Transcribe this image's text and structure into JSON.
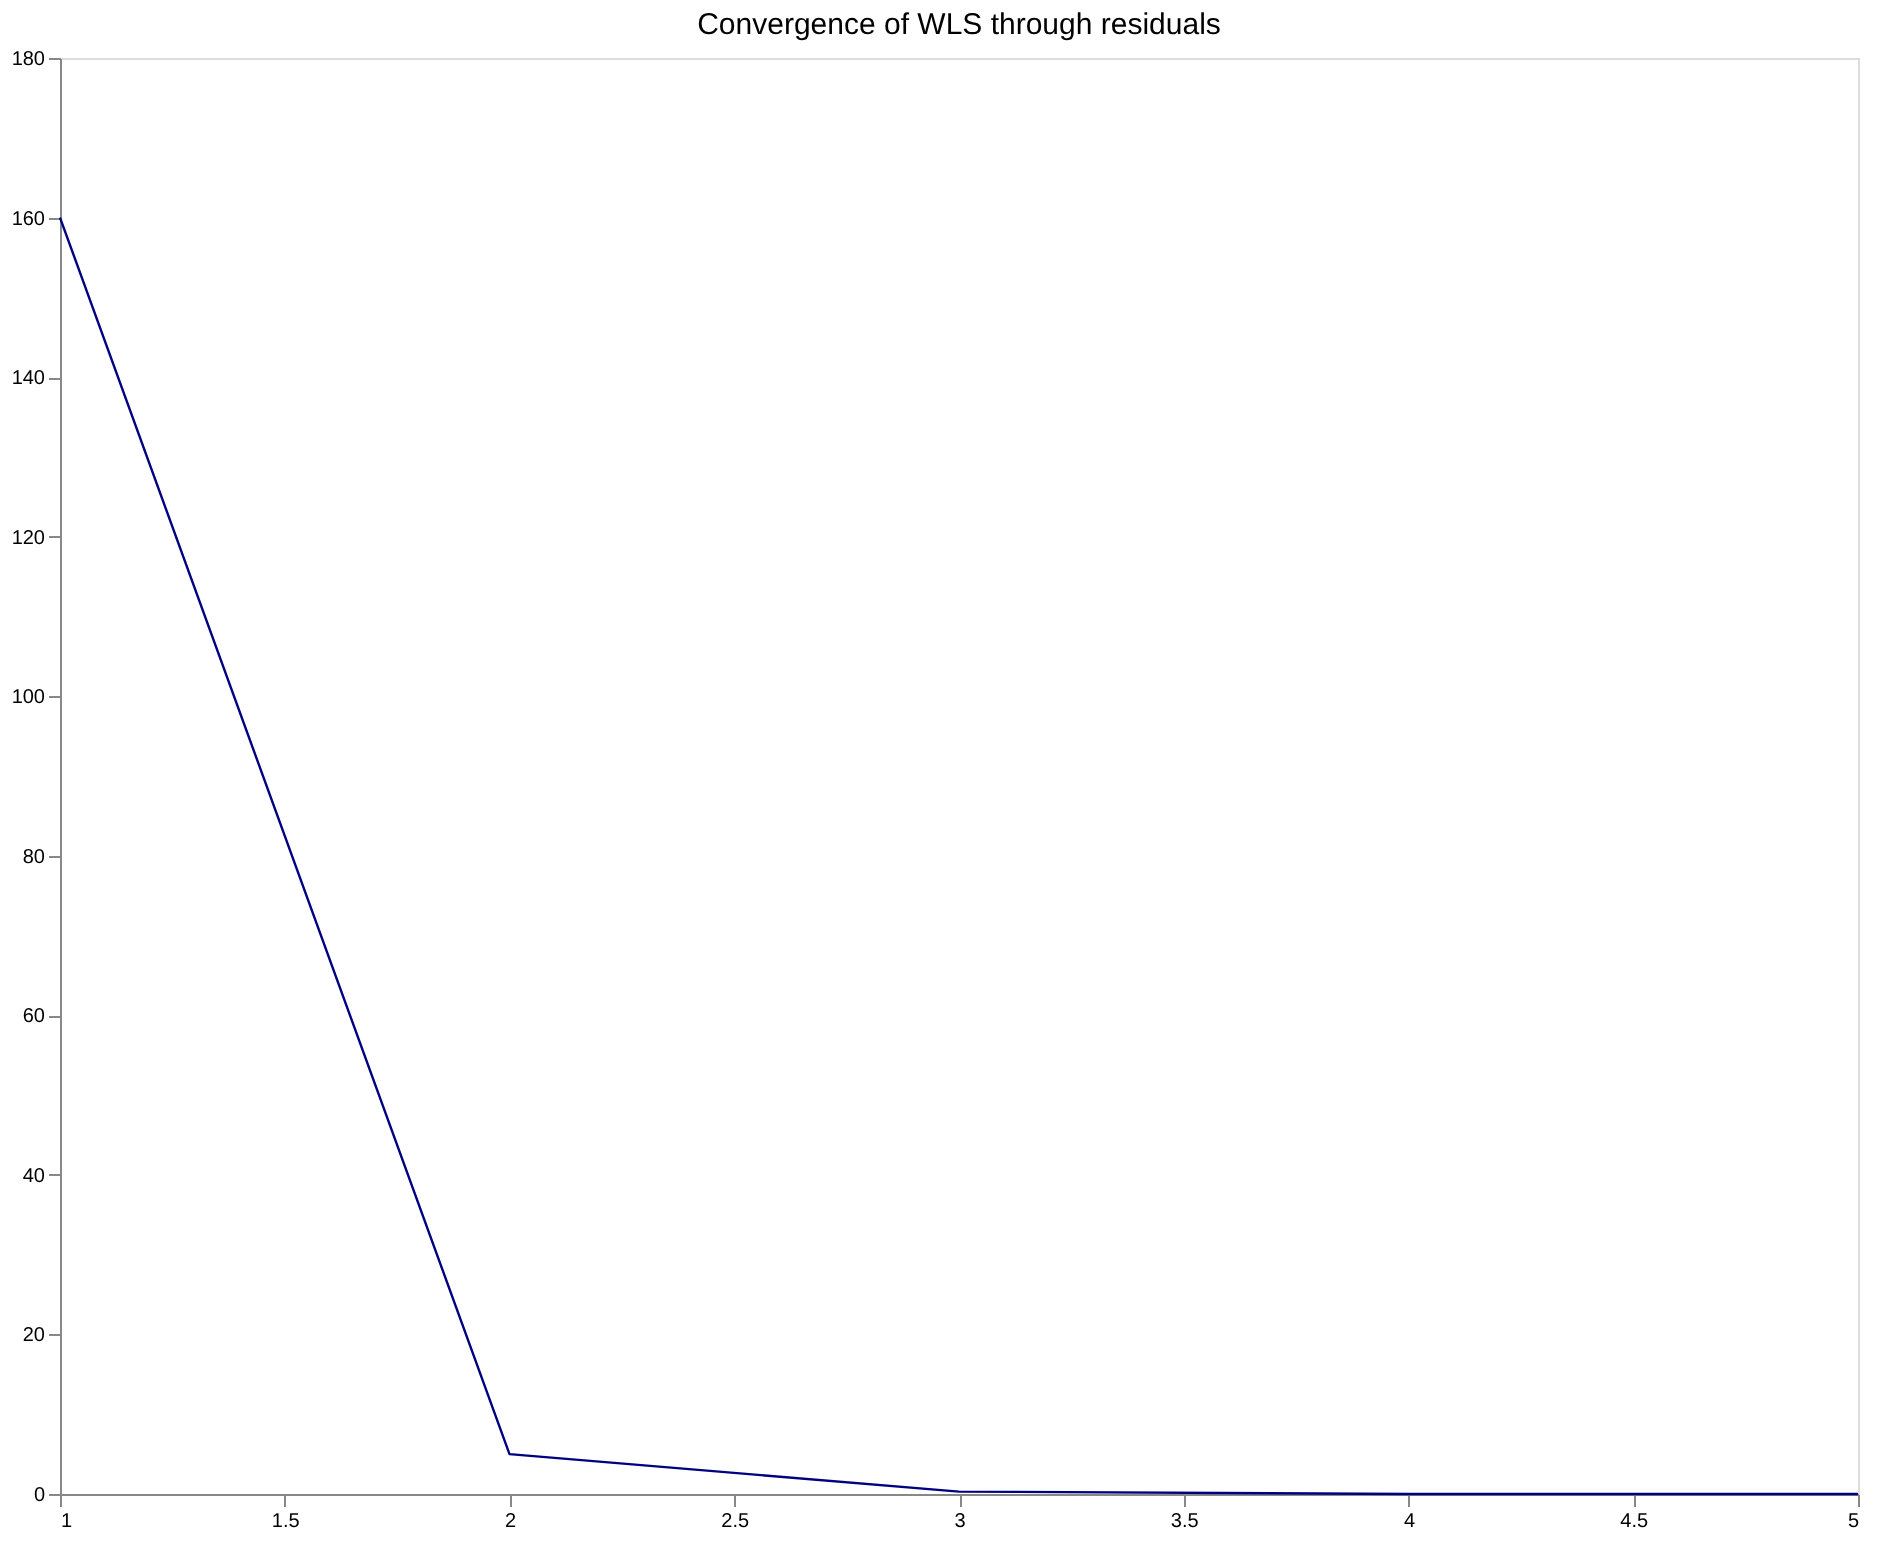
{
  "chart_data": {
    "type": "line",
    "title": "Convergence of WLS through residuals",
    "x": [
      1,
      2,
      3,
      4,
      5
    ],
    "series": [
      {
        "color": "#000080",
        "values": [
          160,
          5,
          0.3,
          0,
          0
        ]
      }
    ],
    "xlim": [
      1,
      5
    ],
    "xticks": [
      1,
      1.5,
      2,
      2.5,
      3,
      3.5,
      4,
      4.5,
      5
    ],
    "ylim": [
      0,
      180
    ],
    "yticks": [
      0,
      20,
      40,
      60,
      80,
      100,
      120,
      140,
      160,
      180
    ],
    "grid": false,
    "marker": "none",
    "line_style": "solid"
  }
}
